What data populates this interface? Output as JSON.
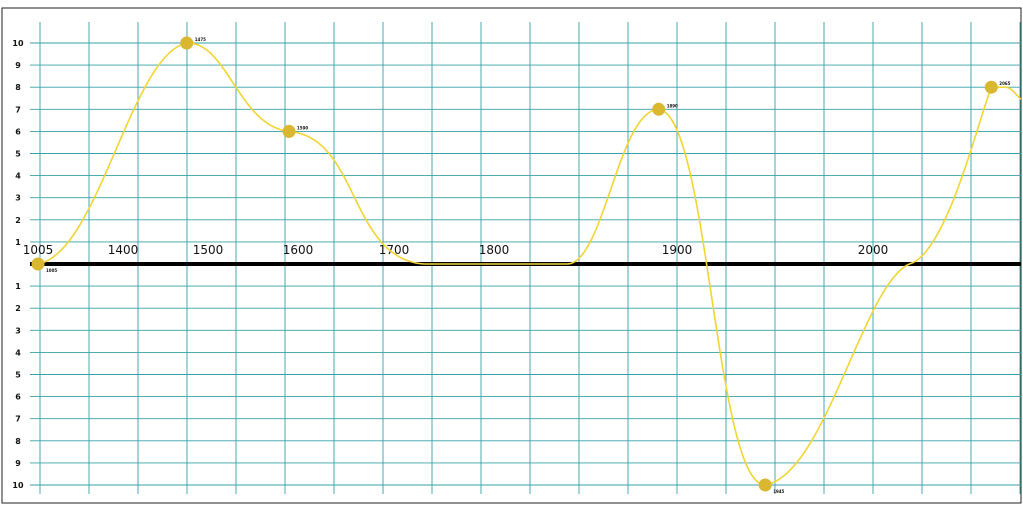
{
  "chart_data": {
    "type": "line",
    "x_tick_labels": [
      "1005",
      "1400",
      "1500",
      "1600",
      "1700",
      "1800",
      "1900",
      "2000"
    ],
    "y_tick_labels_upper": [
      "1",
      "2",
      "3",
      "4",
      "5",
      "6",
      "7",
      "8",
      "9",
      "10"
    ],
    "y_tick_labels_lower": [
      "1",
      "2",
      "3",
      "4",
      "5",
      "6",
      "7",
      "8",
      "9",
      "10"
    ],
    "series": [
      {
        "points": [
          {
            "x": 1005,
            "y": 0,
            "label": "1005"
          },
          {
            "x": 1475,
            "y": 10,
            "label": "1475"
          },
          {
            "x": 1590,
            "y": 6,
            "label": "1590"
          },
          {
            "x": 1890,
            "y": 7,
            "label": "1890"
          },
          {
            "x": 1945,
            "y": -10,
            "label": "1945"
          },
          {
            "x": 2065,
            "y": 8,
            "label": "2065"
          }
        ]
      }
    ],
    "ylim": [
      -10,
      10
    ],
    "grid": true,
    "colors": {
      "line": "#f2d534",
      "marker": "#d9b730",
      "grid": "#35a1a8",
      "axis": "#000000"
    }
  }
}
